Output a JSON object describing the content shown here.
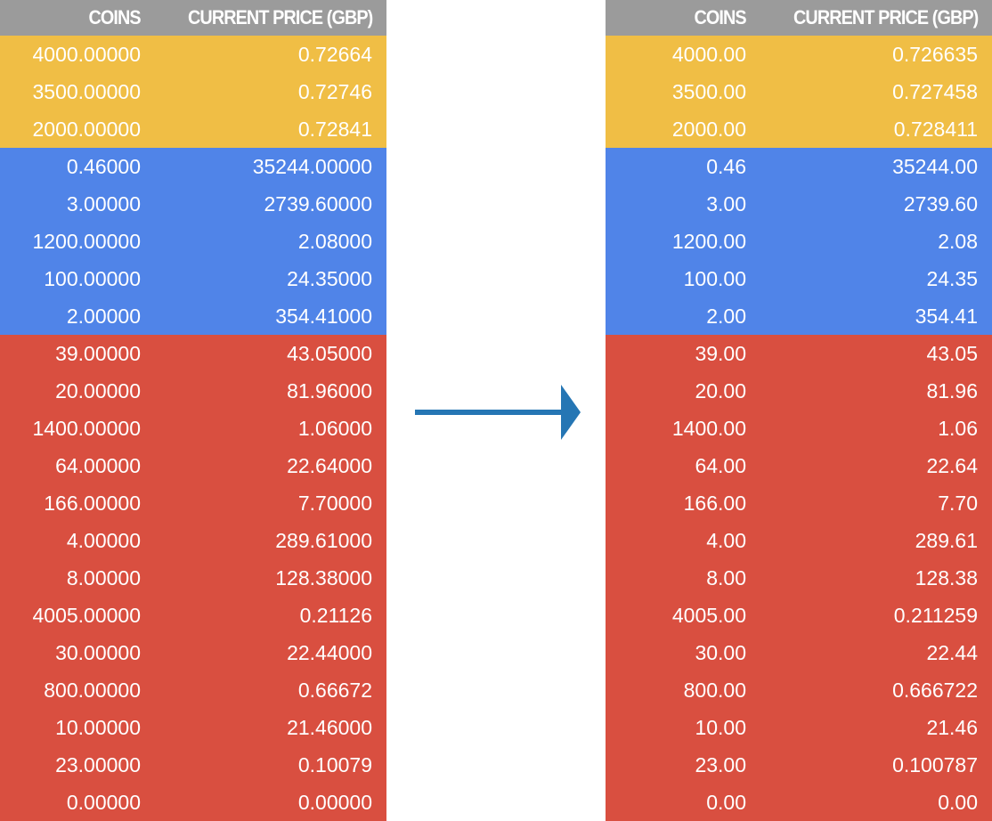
{
  "tables": [
    {
      "headers": [
        "COINS",
        "CURRENT PRICE (GBP)"
      ],
      "groups": [
        {
          "color": "#f0be45",
          "rows": [
            [
              "4000.00000",
              "0.72664"
            ],
            [
              "3500.00000",
              "0.72746"
            ],
            [
              "2000.00000",
              "0.72841"
            ]
          ]
        },
        {
          "color": "#5084e8",
          "rows": [
            [
              "0.46000",
              "35244.00000"
            ],
            [
              "3.00000",
              "2739.60000"
            ],
            [
              "1200.00000",
              "2.08000"
            ],
            [
              "100.00000",
              "24.35000"
            ],
            [
              "2.00000",
              "354.41000"
            ]
          ]
        },
        {
          "color": "#d94f40",
          "rows": [
            [
              "39.00000",
              "43.05000"
            ],
            [
              "20.00000",
              "81.96000"
            ],
            [
              "1400.00000",
              "1.06000"
            ],
            [
              "64.00000",
              "22.64000"
            ],
            [
              "166.00000",
              "7.70000"
            ],
            [
              "4.00000",
              "289.61000"
            ],
            [
              "8.00000",
              "128.38000"
            ],
            [
              "4005.00000",
              "0.21126"
            ],
            [
              "30.00000",
              "22.44000"
            ],
            [
              "800.00000",
              "0.66672"
            ],
            [
              "10.00000",
              "21.46000"
            ],
            [
              "23.00000",
              "0.10079"
            ],
            [
              "0.00000",
              "0.00000"
            ]
          ]
        }
      ]
    },
    {
      "headers": [
        "COINS",
        "CURRENT PRICE (GBP)"
      ],
      "groups": [
        {
          "color": "#f0be45",
          "rows": [
            [
              "4000.00",
              "0.726635"
            ],
            [
              "3500.00",
              "0.727458"
            ],
            [
              "2000.00",
              "0.728411"
            ]
          ]
        },
        {
          "color": "#5084e8",
          "rows": [
            [
              "0.46",
              "35244.00"
            ],
            [
              "3.00",
              "2739.60"
            ],
            [
              "1200.00",
              "2.08"
            ],
            [
              "100.00",
              "24.35"
            ],
            [
              "2.00",
              "354.41"
            ]
          ]
        },
        {
          "color": "#d94f40",
          "rows": [
            [
              "39.00",
              "43.05"
            ],
            [
              "20.00",
              "81.96"
            ],
            [
              "1400.00",
              "1.06"
            ],
            [
              "64.00",
              "22.64"
            ],
            [
              "166.00",
              "7.70"
            ],
            [
              "4.00",
              "289.61"
            ],
            [
              "8.00",
              "128.38"
            ],
            [
              "4005.00",
              "0.211259"
            ],
            [
              "30.00",
              "22.44"
            ],
            [
              "800.00",
              "0.666722"
            ],
            [
              "10.00",
              "21.46"
            ],
            [
              "23.00",
              "0.100787"
            ],
            [
              "0.00",
              "0.00"
            ]
          ]
        }
      ]
    }
  ]
}
